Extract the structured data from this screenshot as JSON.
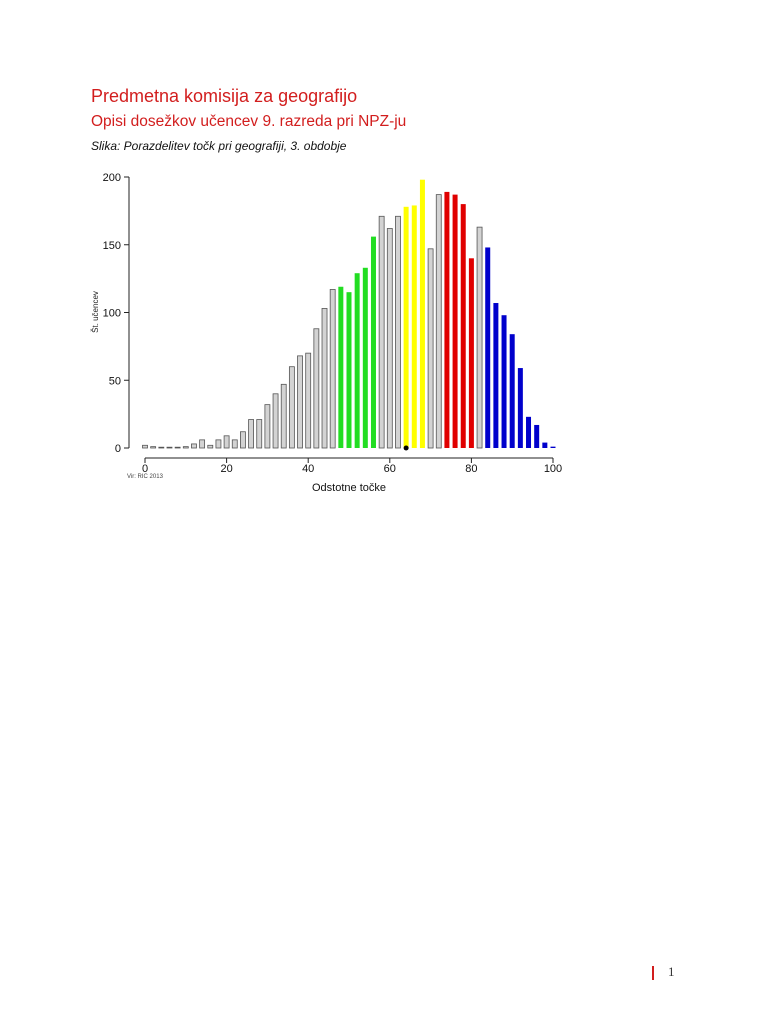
{
  "header": {
    "title": "Predmetna komisija za geografijo",
    "subtitle": "Opisi dosežkov učencev 9. razreda pri NPZ-ju",
    "caption": "Slika: Porazdelitev točk pri geografiji, 3. obdobje"
  },
  "footer": {
    "page_number": "1",
    "accent_color": "#d21e1e"
  },
  "colors": {
    "gray": "#d3d3d3",
    "green": "#22dd22",
    "yellow": "#ffff00",
    "red": "#e00000",
    "blue": "#0000cc",
    "marker": "#000000"
  },
  "chart_data": {
    "type": "bar",
    "title": "Porazdelitev točk pri geografiji, 3. obdobje",
    "xlabel": "Odstotne točke",
    "ylabel": "Št. učencev",
    "source_note": "Vir: RIC 2013",
    "xlim": [
      0,
      100
    ],
    "ylim": [
      0,
      200
    ],
    "x_ticks": [
      0,
      20,
      40,
      60,
      80,
      100
    ],
    "y_ticks": [
      0,
      50,
      100,
      150,
      200
    ],
    "grid": false,
    "marker_x": 64,
    "x": [
      0,
      2,
      4,
      6,
      8,
      10,
      12,
      14,
      16,
      18,
      20,
      22,
      24,
      26,
      28,
      30,
      32,
      34,
      36,
      38,
      40,
      42,
      44,
      46,
      48,
      50,
      52,
      54,
      56,
      58,
      60,
      62,
      64,
      66,
      68,
      70,
      72,
      74,
      76,
      78,
      80,
      82,
      84,
      86,
      88,
      90,
      92,
      94,
      96,
      98,
      100
    ],
    "values": [
      2,
      1,
      0,
      0,
      0,
      1,
      3,
      6,
      2,
      6,
      9,
      6,
      12,
      21,
      21,
      32,
      40,
      47,
      60,
      68,
      70,
      88,
      103,
      117,
      119,
      115,
      129,
      133,
      156,
      171,
      162,
      171,
      178,
      179,
      198,
      147,
      187,
      189,
      187,
      180,
      140,
      163,
      148,
      107,
      98,
      84,
      59,
      23,
      17,
      4,
      1
    ],
    "bar_groups": [
      "gray",
      "gray",
      "gray",
      "gray",
      "gray",
      "gray",
      "gray",
      "gray",
      "gray",
      "gray",
      "gray",
      "gray",
      "gray",
      "gray",
      "gray",
      "gray",
      "gray",
      "gray",
      "gray",
      "gray",
      "gray",
      "gray",
      "gray",
      "gray",
      "green",
      "green",
      "green",
      "green",
      "green",
      "gray",
      "gray",
      "gray",
      "yellow",
      "yellow",
      "yellow",
      "gray",
      "gray",
      "red",
      "red",
      "red",
      "red",
      "gray",
      "blue",
      "blue",
      "blue",
      "blue",
      "blue",
      "blue",
      "blue",
      "blue",
      "blue"
    ]
  }
}
